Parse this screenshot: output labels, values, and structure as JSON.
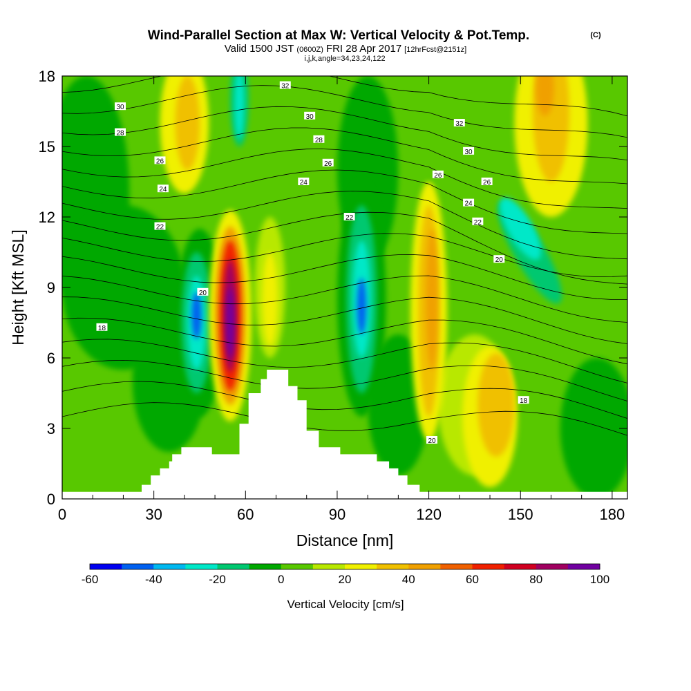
{
  "title": {
    "main": "Wind-Parallel Section at Max W: Vertical Velocity & Pot.Temp.",
    "copyright": "(C)",
    "valid_prefix": "Valid 1500 JST",
    "valid_utc": "(0600Z)",
    "valid_date": "FRI 28 Apr 2017",
    "forecast": "[12hrFcst@2151z]",
    "params": "i,j,k,angle=34,23,24,122"
  },
  "chart_data": {
    "type": "heatmap",
    "xlabel": "Distance [nm]",
    "ylabel": "Height [Kft MSL]",
    "xlim": [
      0,
      185
    ],
    "ylim": [
      0,
      18
    ],
    "x_ticks": [
      "0",
      "30",
      "60",
      "90",
      "120",
      "150",
      "180"
    ],
    "x_tick_values": [
      0,
      30,
      60,
      90,
      120,
      150,
      180
    ],
    "y_ticks": [
      "0",
      "3",
      "6",
      "9",
      "12",
      "15",
      "18"
    ],
    "y_tick_values": [
      0,
      3,
      6,
      9,
      12,
      15,
      18
    ],
    "colorbar": {
      "label": "Vertical Velocity [cm/s]",
      "bins": [
        -60,
        -50,
        -40,
        -30,
        -20,
        -10,
        0,
        10,
        20,
        30,
        40,
        50,
        60,
        70,
        80,
        90,
        100
      ],
      "tick_labels": [
        "-60",
        "-40",
        "-20",
        "0",
        "20",
        "40",
        "60",
        "80",
        "100"
      ],
      "tick_values": [
        -60,
        -40,
        -20,
        0,
        20,
        40,
        60,
        80,
        100
      ],
      "colors": [
        "#0000f0",
        "#0060f0",
        "#00b8f0",
        "#00e8c8",
        "#00c870",
        "#00a800",
        "#58c800",
        "#b8e800",
        "#f0f000",
        "#f0c000",
        "#f0a000",
        "#f06000",
        "#f02000",
        "#d00020",
        "#a00060",
        "#7000a0"
      ]
    },
    "velocity_features": [
      {
        "x": 55,
        "y": 7.5,
        "value": 90
      },
      {
        "x": 45,
        "y": 7.5,
        "value": -50
      },
      {
        "x": 98,
        "y": 8.3,
        "value": -50
      },
      {
        "x": 58,
        "y": 17,
        "value": -30
      },
      {
        "x": 120,
        "y": 8,
        "value": 40
      },
      {
        "x": 142,
        "y": 4,
        "value": 35
      },
      {
        "x": 160,
        "y": 16.5,
        "value": 40
      },
      {
        "x": 40,
        "y": 16,
        "value": 30
      },
      {
        "x": 153,
        "y": 10.5,
        "value": -25
      },
      {
        "x": 68,
        "y": 9,
        "value": 20
      }
    ],
    "isentrope_labels": [
      {
        "text": "32",
        "x": 73,
        "y": 17.6
      },
      {
        "text": "30",
        "x": 19,
        "y": 16.7
      },
      {
        "text": "30",
        "x": 81,
        "y": 16.3
      },
      {
        "text": "32",
        "x": 130,
        "y": 16.0
      },
      {
        "text": "28",
        "x": 19,
        "y": 15.6
      },
      {
        "text": "28",
        "x": 84,
        "y": 15.3
      },
      {
        "text": "30",
        "x": 133,
        "y": 14.8
      },
      {
        "text": "26",
        "x": 32,
        "y": 14.4
      },
      {
        "text": "26",
        "x": 87,
        "y": 14.3
      },
      {
        "text": "26",
        "x": 123,
        "y": 13.8
      },
      {
        "text": "26",
        "x": 139,
        "y": 13.5
      },
      {
        "text": "24",
        "x": 33,
        "y": 13.2
      },
      {
        "text": "24",
        "x": 79,
        "y": 13.5
      },
      {
        "text": "24",
        "x": 133,
        "y": 12.6
      },
      {
        "text": "22",
        "x": 94,
        "y": 12.0
      },
      {
        "text": "22",
        "x": 136,
        "y": 11.8
      },
      {
        "text": "22",
        "x": 32,
        "y": 11.6
      },
      {
        "text": "20",
        "x": 143,
        "y": 10.2
      },
      {
        "text": "20",
        "x": 46,
        "y": 8.8
      },
      {
        "text": "18",
        "x": 13,
        "y": 7.3
      },
      {
        "text": "18",
        "x": 151,
        "y": 4.2
      },
      {
        "text": "20",
        "x": 121,
        "y": 2.5
      }
    ],
    "terrain_profile": [
      {
        "x": 0,
        "h": 0.3
      },
      {
        "x": 26,
        "h": 0.3
      },
      {
        "x": 26,
        "h": 0.6
      },
      {
        "x": 29,
        "h": 0.6
      },
      {
        "x": 29,
        "h": 1.0
      },
      {
        "x": 32,
        "h": 1.0
      },
      {
        "x": 32,
        "h": 1.3
      },
      {
        "x": 35,
        "h": 1.3
      },
      {
        "x": 35,
        "h": 1.6
      },
      {
        "x": 36,
        "h": 1.6
      },
      {
        "x": 36,
        "h": 1.9
      },
      {
        "x": 39,
        "h": 1.9
      },
      {
        "x": 39,
        "h": 2.2
      },
      {
        "x": 49,
        "h": 2.2
      },
      {
        "x": 49,
        "h": 1.9
      },
      {
        "x": 58,
        "h": 1.9
      },
      {
        "x": 58,
        "h": 3.2
      },
      {
        "x": 61,
        "h": 3.2
      },
      {
        "x": 61,
        "h": 4.5
      },
      {
        "x": 65,
        "h": 4.5
      },
      {
        "x": 65,
        "h": 5.1
      },
      {
        "x": 67,
        "h": 5.1
      },
      {
        "x": 67,
        "h": 5.5
      },
      {
        "x": 74,
        "h": 5.5
      },
      {
        "x": 74,
        "h": 4.8
      },
      {
        "x": 77,
        "h": 4.8
      },
      {
        "x": 77,
        "h": 4.2
      },
      {
        "x": 80,
        "h": 4.2
      },
      {
        "x": 80,
        "h": 2.9
      },
      {
        "x": 84,
        "h": 2.9
      },
      {
        "x": 84,
        "h": 2.2
      },
      {
        "x": 91,
        "h": 2.2
      },
      {
        "x": 91,
        "h": 1.9
      },
      {
        "x": 103,
        "h": 1.9
      },
      {
        "x": 103,
        "h": 1.6
      },
      {
        "x": 107,
        "h": 1.6
      },
      {
        "x": 107,
        "h": 1.3
      },
      {
        "x": 110,
        "h": 1.3
      },
      {
        "x": 110,
        "h": 1.0
      },
      {
        "x": 113,
        "h": 1.0
      },
      {
        "x": 113,
        "h": 0.6
      },
      {
        "x": 117,
        "h": 0.6
      },
      {
        "x": 117,
        "h": 0.3
      },
      {
        "x": 185,
        "h": 0.3
      }
    ]
  }
}
